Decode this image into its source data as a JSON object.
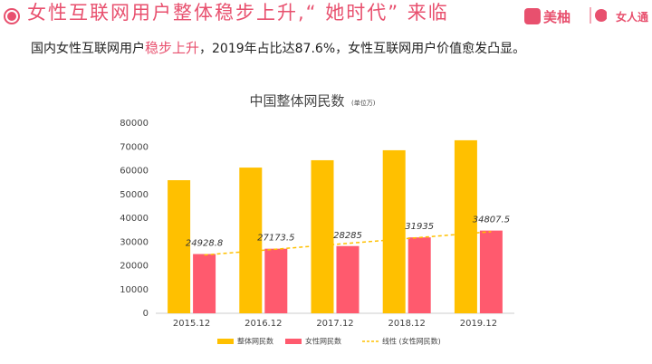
{
  "header": {
    "title": "女性互联网用户整体稳步上升,“ 她时代” 来临",
    "subtitle": [
      "国内女性互联网用户",
      "稳步上升",
      "，2019年占比达87.6%，女性互联网用户价值愈发凸显。"
    ],
    "logos": [
      "美柚",
      "女人通"
    ]
  },
  "chart_data": {
    "type": "bar",
    "title": "中国整体网民数",
    "unit": "(单位万)",
    "categories": [
      "2015.12",
      "2016.12",
      "2017.12",
      "2018.12",
      "2019.12"
    ],
    "series": [
      {
        "name": "整体网民数",
        "color": "#ffc000",
        "values": [
          56000,
          61300,
          64400,
          68600,
          72800
        ]
      },
      {
        "name": "女性网民数",
        "color": "#ff5a6e",
        "values": [
          24928.8,
          27173.5,
          28285,
          31935,
          34807.5
        ]
      }
    ],
    "trendline": {
      "name": "线性 (女性网民数)",
      "series": 1,
      "color": "#ffc000"
    },
    "ylim": [
      0,
      80000
    ],
    "yticks": [
      0,
      10000,
      20000,
      30000,
      40000,
      50000,
      60000,
      70000,
      80000
    ],
    "grid": false
  }
}
